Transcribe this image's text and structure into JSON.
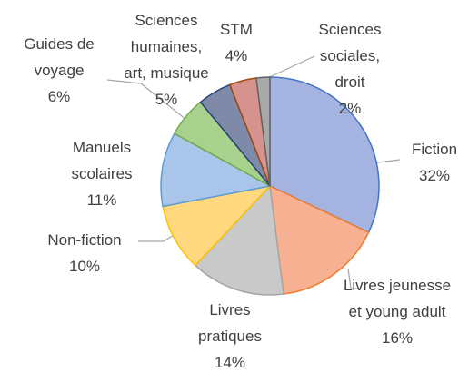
{
  "chart_data": {
    "type": "pie",
    "categories": [
      "Fiction",
      "Livres jeunesse et young adult",
      "Livres pratiques",
      "Non-fiction",
      "Manuels scolaires",
      "Guides de voyage",
      "Sciences humaines, art, musique",
      "STM",
      "Sciences sociales, droit"
    ],
    "values": [
      32,
      16,
      14,
      10,
      11,
      6,
      5,
      4,
      2
    ],
    "value_labels": [
      "32%",
      "16%",
      "14%",
      "10%",
      "11%",
      "6%",
      "5%",
      "4%",
      "2%"
    ],
    "colors": [
      "#a4b3e0",
      "#f7b192",
      "#c9c9c9",
      "#ffd87f",
      "#a9c5ea",
      "#a8d18d",
      "#7f8aa8",
      "#d6938e",
      "#a9a9a9"
    ],
    "stroke_colors": [
      "#4472c4",
      "#ed7d31",
      "#a5a5a5",
      "#ffc000",
      "#5b9bd5",
      "#70ad47",
      "#264478",
      "#9e480e",
      "#636363"
    ]
  }
}
